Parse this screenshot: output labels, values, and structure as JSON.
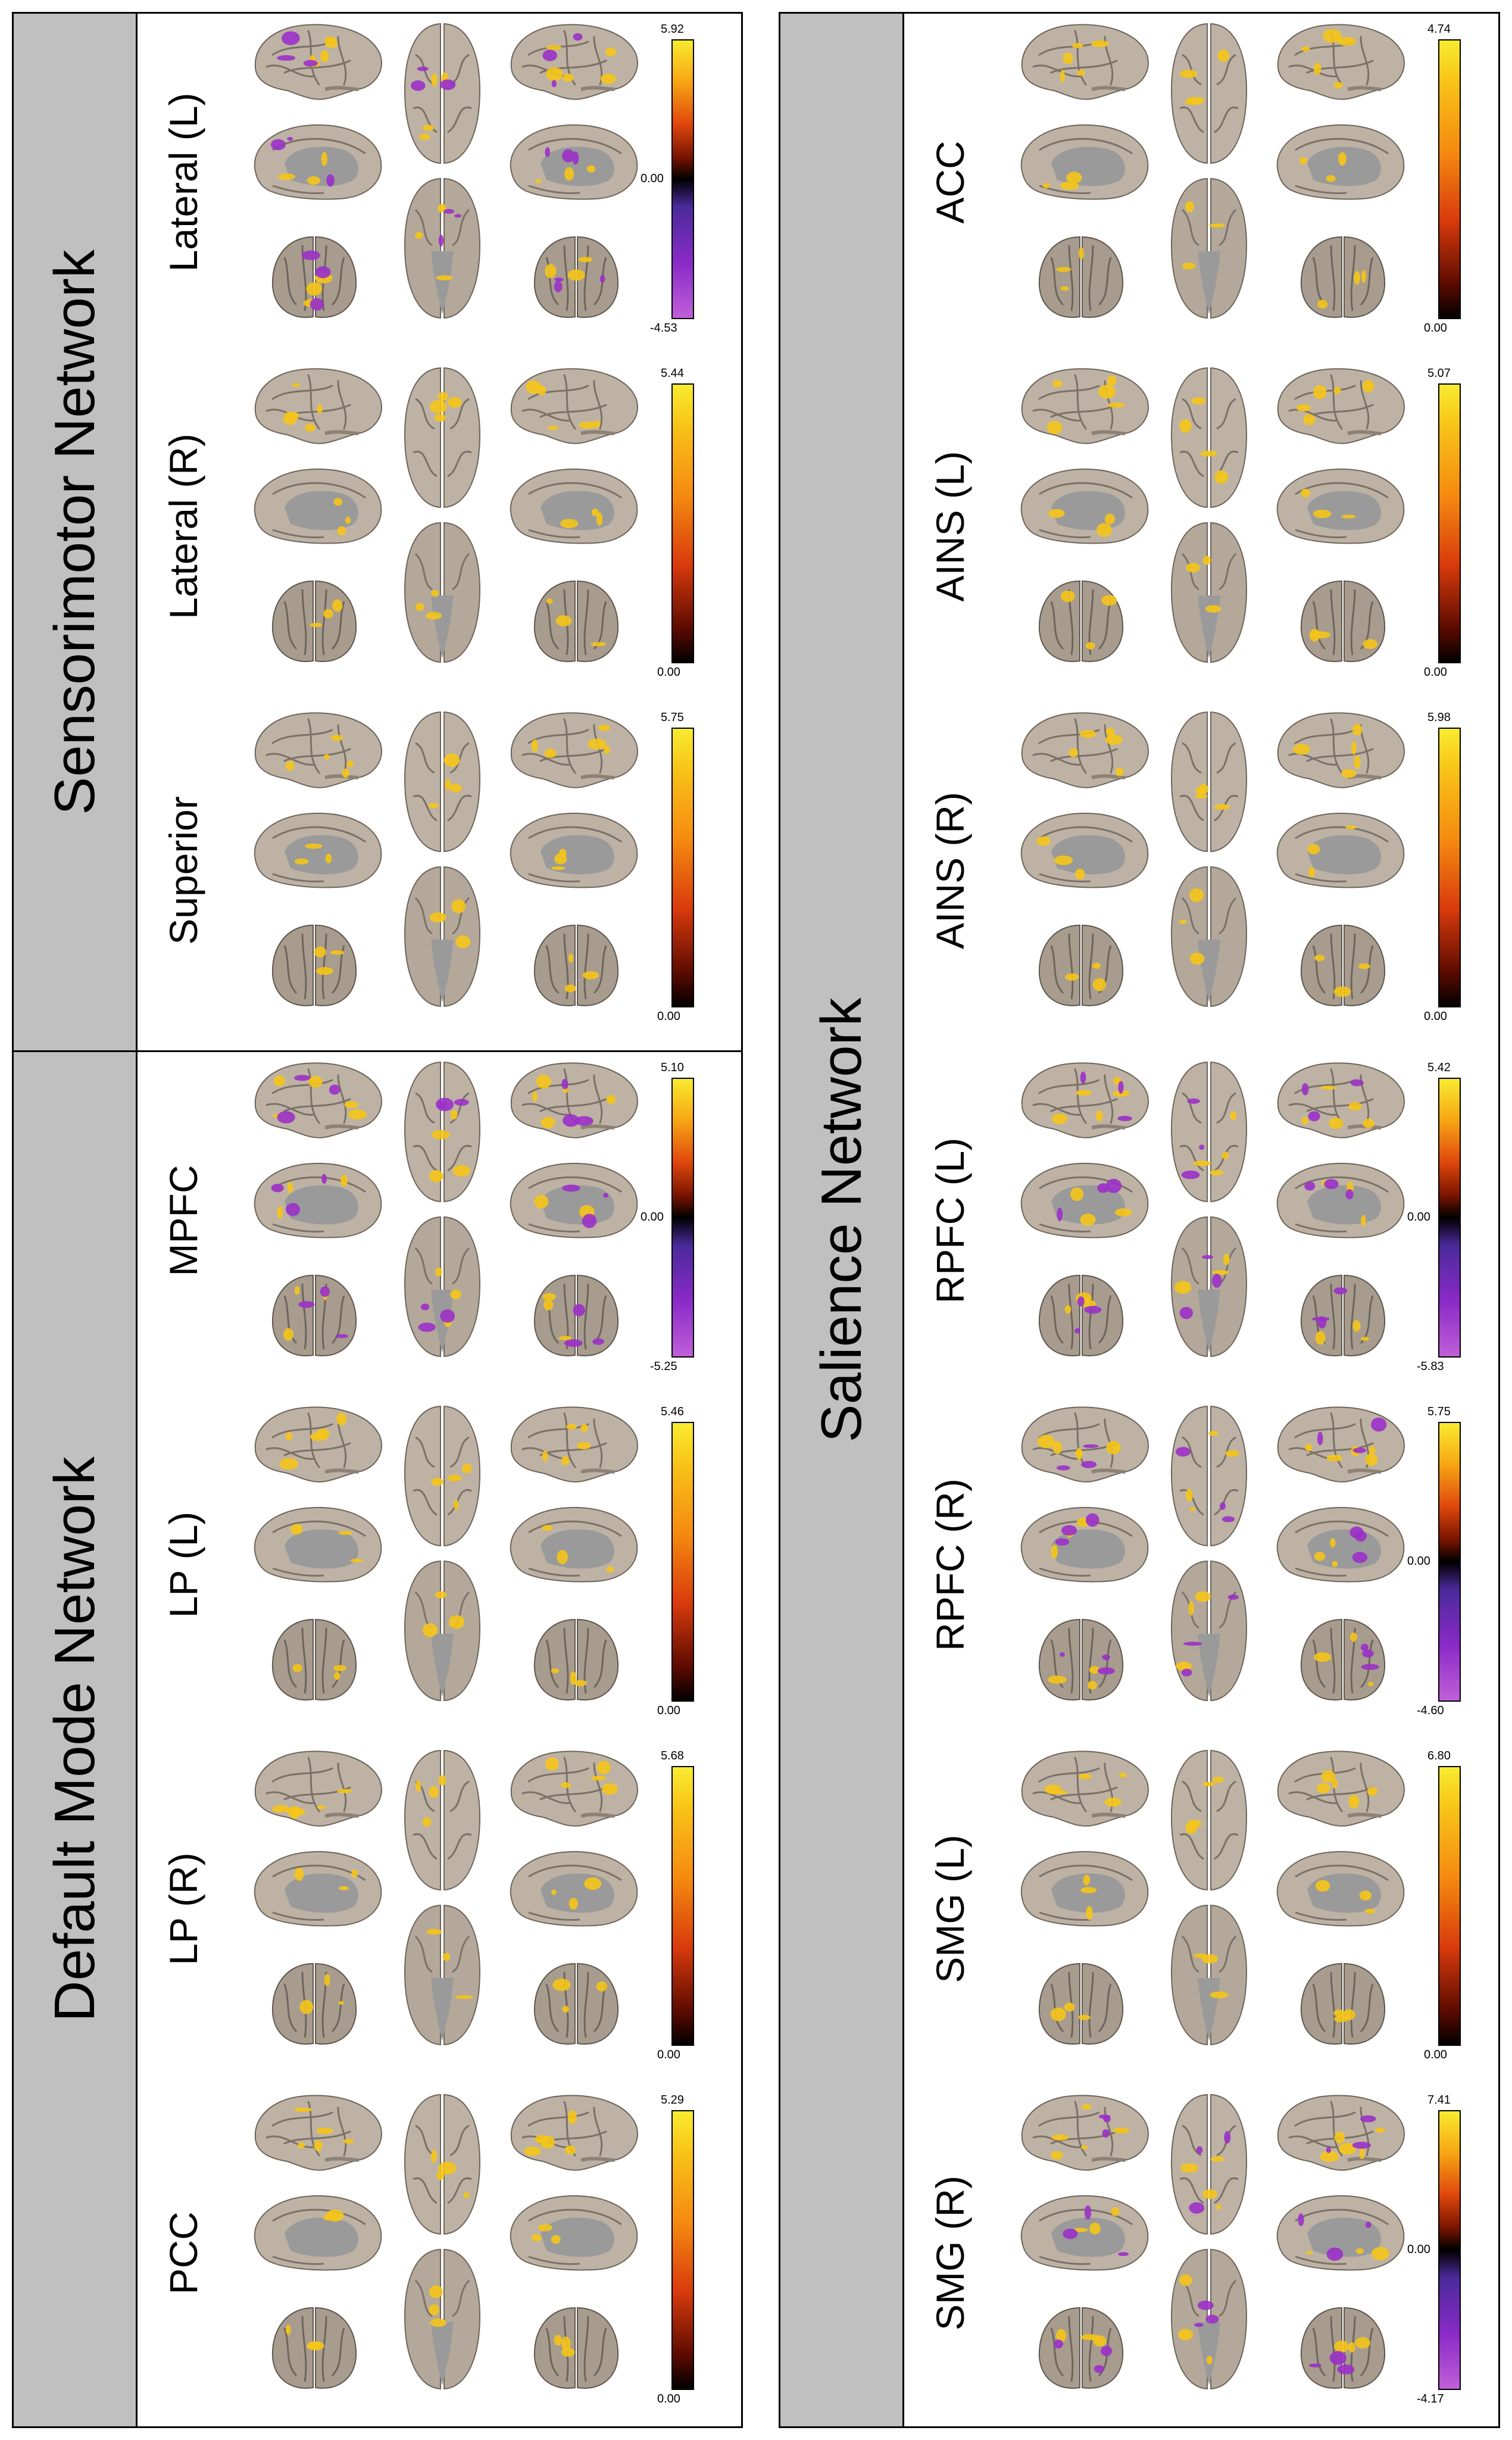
{
  "networks": [
    {
      "name": "Sensorimotor Network",
      "rows": [
        {
          "label": "Lateral (L)",
          "scale": {
            "max": "5.92",
            "mid": "0.00",
            "min": "-4.53"
          },
          "diverging": true
        },
        {
          "label": "Lateral (R)",
          "scale": {
            "max": "5.44",
            "min": "0.00"
          },
          "diverging": false
        },
        {
          "label": "Superior",
          "scale": {
            "max": "5.75",
            "min": "0.00"
          },
          "diverging": false
        }
      ]
    },
    {
      "name": "Default Mode Network",
      "rows": [
        {
          "label": "MPFC",
          "scale": {
            "max": "5.10",
            "mid": "0.00",
            "min": "-5.25"
          },
          "diverging": true
        },
        {
          "label": "LP (L)",
          "scale": {
            "max": "5.46",
            "min": "0.00"
          },
          "diverging": false
        },
        {
          "label": "LP (R)",
          "scale": {
            "max": "5.68",
            "min": "0.00"
          },
          "diverging": false
        },
        {
          "label": "PCC",
          "scale": {
            "max": "5.29",
            "min": "0.00"
          },
          "diverging": false
        }
      ]
    },
    {
      "name": "Salience Network",
      "rows": [
        {
          "label": "ACC",
          "scale": {
            "max": "4.74",
            "min": "0.00"
          },
          "diverging": false
        },
        {
          "label": "AINS (L)",
          "scale": {
            "max": "5.07",
            "min": "0.00"
          },
          "diverging": false
        },
        {
          "label": "AINS (R)",
          "scale": {
            "max": "5.98",
            "min": "0.00"
          },
          "diverging": false
        },
        {
          "label": "RPFC (L)",
          "scale": {
            "max": "5.42",
            "mid": "0.00",
            "min": "-5.83"
          },
          "diverging": true
        },
        {
          "label": "RPFC (R)",
          "scale": {
            "max": "5.75",
            "mid": "0.00",
            "min": "-4.60"
          },
          "diverging": true
        },
        {
          "label": "SMG (L)",
          "scale": {
            "max": "6.80",
            "min": "0.00"
          },
          "diverging": false
        },
        {
          "label": "SMG (R)",
          "scale": {
            "max": "7.41",
            "mid": "0.00",
            "min": "-4.17"
          },
          "diverging": true
        }
      ]
    }
  ],
  "colors": {
    "brain_fill": "#bdb2a4",
    "brain_shadow": "#8c8276",
    "brain_sulci": "#7b7166",
    "gray_matter_medial": "#9a9a9a",
    "positive_activation": "#f5c518",
    "negative_activation": "#9b30c8",
    "band_gray": "#c0c0c0"
  }
}
